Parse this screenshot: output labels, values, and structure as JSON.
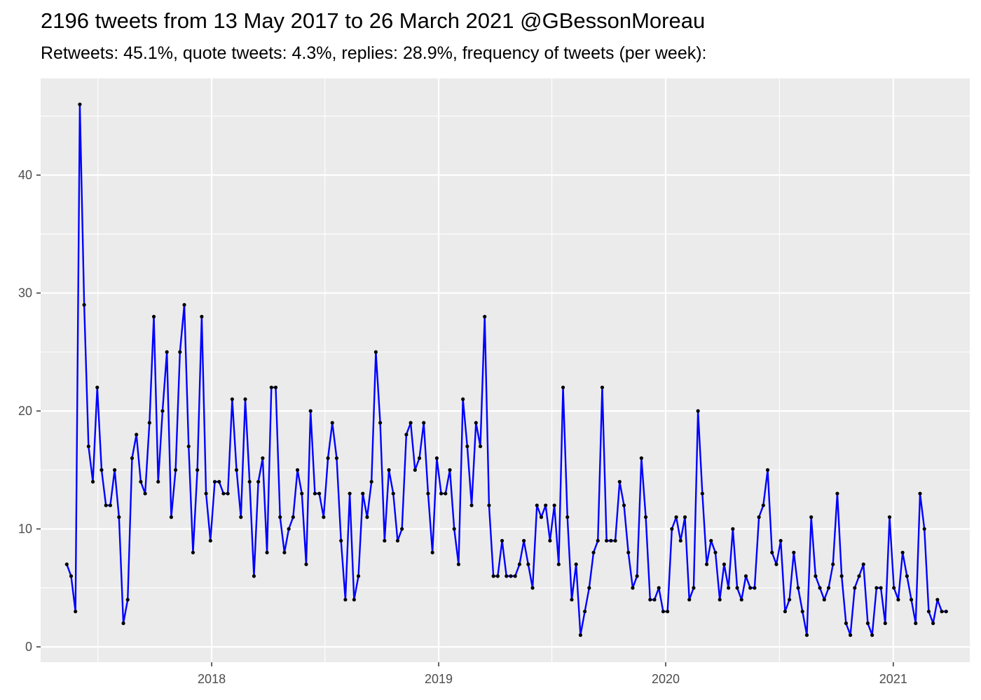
{
  "chart_data": {
    "type": "line",
    "title": "2196 tweets from 13 May 2017 to 26 March 2021 @GBessonMoreau",
    "subtitle": "Retweets: 45.1%, quote tweets: 4.3%, replies: 28.9%, frequency of tweets (per week):",
    "xlabel": "",
    "ylabel": "",
    "x_start": "2017-05-13",
    "x_interval": "1 week",
    "xlim": [
      "2017-04-01",
      "2021-05-04"
    ],
    "ylim": [
      -1.3,
      48.2
    ],
    "x_ticks": [
      "2018",
      "2019",
      "2020",
      "2021"
    ],
    "y_ticks": [
      "0",
      "10",
      "20",
      "30",
      "40"
    ],
    "grid": true,
    "legend": "none",
    "line_color": "#0000ff",
    "point_color": "#000000",
    "panel_color": "#ebebeb",
    "series": [
      {
        "values": [
          7,
          6,
          3,
          46,
          29,
          17,
          14,
          22,
          15,
          12,
          12,
          15,
          11,
          2,
          4,
          16,
          18,
          14,
          13,
          19,
          28,
          14,
          20,
          25,
          11,
          15,
          25,
          29,
          17,
          8,
          15,
          28,
          13,
          9,
          14,
          14,
          13,
          13,
          21,
          15,
          11,
          21,
          14,
          6,
          14,
          16,
          8,
          22,
          22,
          11,
          8,
          10,
          11,
          15,
          13,
          7,
          20,
          13,
          13,
          11,
          16,
          19,
          16,
          9,
          4,
          13,
          4,
          6,
          13,
          11,
          14,
          25,
          19,
          9,
          15,
          13,
          9,
          10,
          18,
          19,
          15,
          16,
          19,
          13,
          8,
          16,
          13,
          13,
          15,
          10,
          7,
          21,
          17,
          12,
          19,
          17,
          28,
          12,
          6,
          6,
          9,
          6,
          6,
          6,
          7,
          9,
          7,
          5,
          12,
          11,
          12,
          9,
          12,
          7,
          22,
          11,
          4,
          7,
          1,
          3,
          5,
          8,
          9,
          22,
          9,
          9,
          9,
          14,
          12,
          8,
          5,
          6,
          16,
          11,
          4,
          4,
          5,
          3,
          3,
          10,
          11,
          9,
          11,
          4,
          5,
          20,
          13,
          7,
          9,
          8,
          4,
          7,
          5,
          10,
          5,
          4,
          6,
          5,
          5,
          11,
          12,
          15,
          8,
          7,
          9,
          3,
          4,
          8,
          5,
          3,
          1,
          11,
          6,
          5,
          4,
          5,
          7,
          13,
          6,
          2,
          1,
          5,
          6,
          7,
          2,
          1,
          5,
          5,
          2,
          11,
          5,
          4,
          8,
          6,
          4,
          2,
          13,
          10,
          3,
          2,
          4,
          3,
          3
        ]
      }
    ]
  }
}
